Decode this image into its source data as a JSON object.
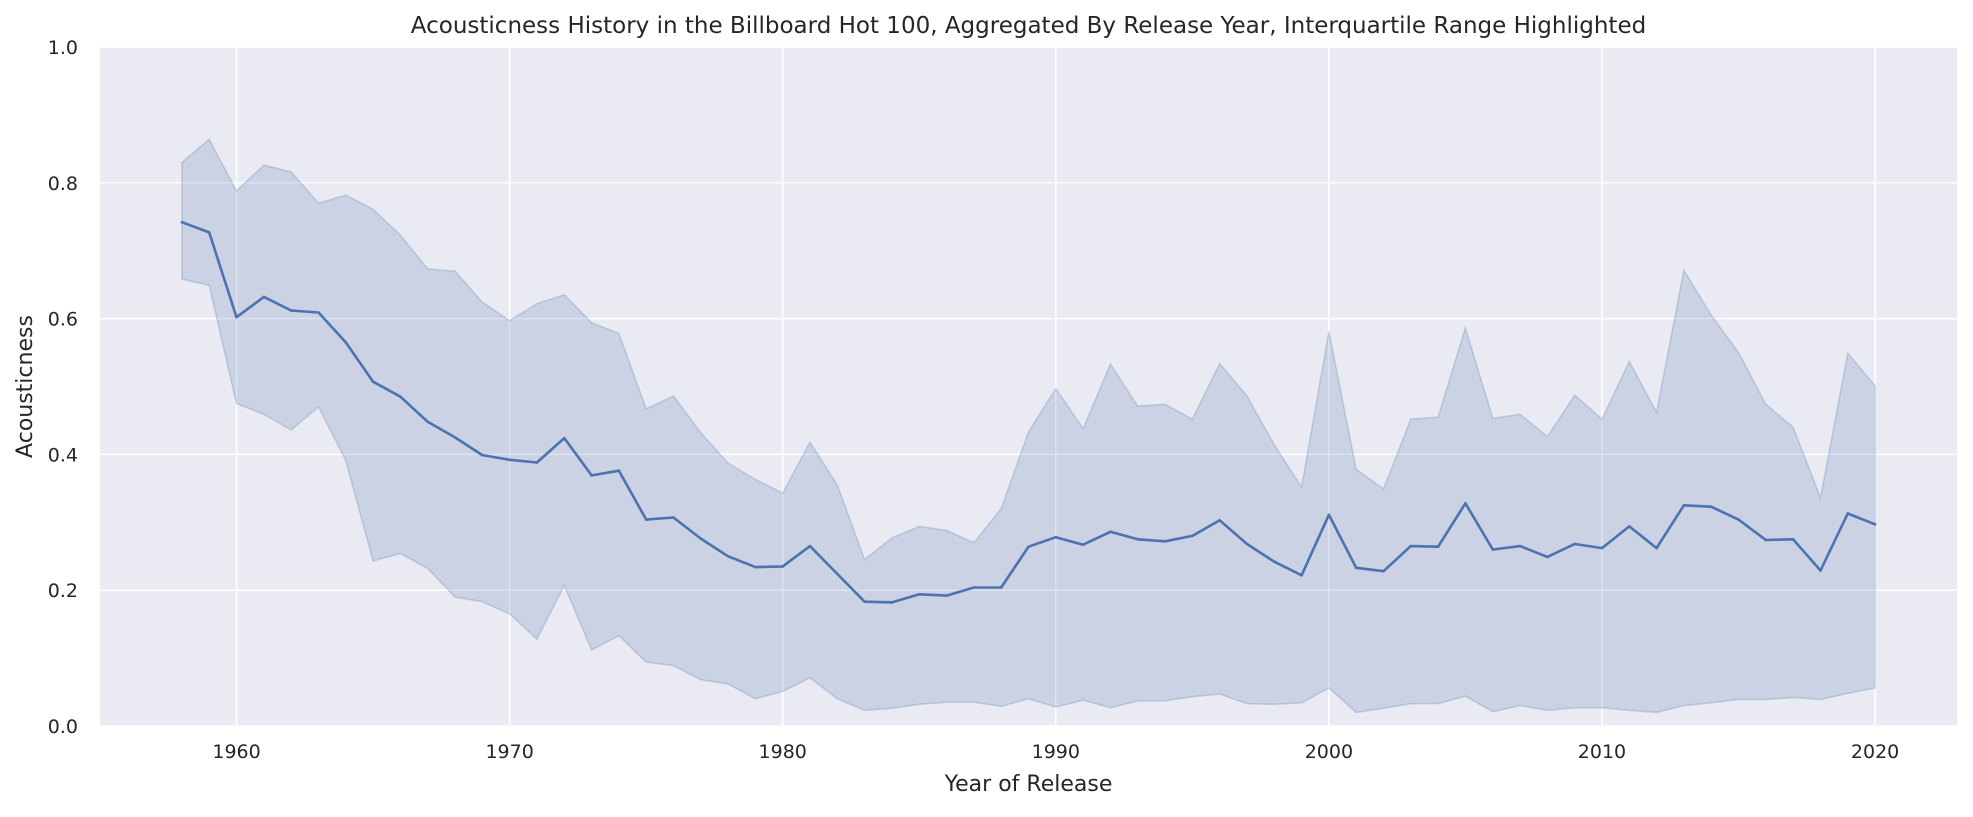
{
  "chart_data": {
    "type": "line",
    "title": "Acousticness History in the Billboard Hot 100, Aggregated By Release Year, Interquartile Range Highlighted",
    "xlabel": "Year of Release",
    "ylabel": "Acousticness",
    "xlim": [
      1955,
      2023
    ],
    "ylim": [
      0.0,
      1.0
    ],
    "xticks": [
      1960,
      1970,
      1980,
      1990,
      2000,
      2010,
      2020
    ],
    "xtick_labels": [
      "1960",
      "1970",
      "1980",
      "1990",
      "2000",
      "2010",
      "2020"
    ],
    "yticks": [
      0.0,
      0.2,
      0.4,
      0.6,
      0.8,
      1.0
    ],
    "ytick_labels": [
      "0.0",
      "0.2",
      "0.4",
      "0.6",
      "0.8",
      "1.0"
    ],
    "grid": true,
    "colors": {
      "background": "#eaeaf2",
      "grid": "#ffffff",
      "line": "#4c72b0",
      "band": "#4c72b0"
    },
    "x": [
      1958,
      1959,
      1960,
      1961,
      1962,
      1963,
      1964,
      1965,
      1966,
      1967,
      1968,
      1969,
      1970,
      1971,
      1972,
      1973,
      1974,
      1975,
      1976,
      1977,
      1978,
      1979,
      1980,
      1981,
      1982,
      1983,
      1984,
      1985,
      1986,
      1987,
      1988,
      1989,
      1990,
      1991,
      1992,
      1993,
      1994,
      1995,
      1996,
      1997,
      1998,
      1999,
      2000,
      2001,
      2002,
      2003,
      2004,
      2005,
      2006,
      2007,
      2008,
      2009,
      2010,
      2011,
      2012,
      2013,
      2014,
      2015,
      2016,
      2017,
      2018,
      2019,
      2020
    ],
    "series": [
      {
        "values": [
          0.742,
          0.727,
          0.602,
          0.632,
          0.612,
          0.609,
          0.565,
          0.507,
          0.485,
          0.448,
          0.425,
          0.399,
          0.392,
          0.388,
          0.424,
          0.369,
          0.376,
          0.304,
          0.307,
          0.276,
          0.25,
          0.234,
          0.235,
          0.265,
          0.224,
          0.183,
          0.182,
          0.194,
          0.192,
          0.204,
          0.204,
          0.264,
          0.278,
          0.267,
          0.286,
          0.275,
          0.272,
          0.28,
          0.303,
          0.268,
          0.242,
          0.222,
          0.311,
          0.233,
          0.228,
          0.265,
          0.264,
          0.328,
          0.26,
          0.265,
          0.249,
          0.268,
          0.262,
          0.294,
          0.262,
          0.325,
          0.323,
          0.304,
          0.274,
          0.275,
          0.229,
          0.313,
          0.297
        ],
        "q1": [
          0.658,
          0.649,
          0.475,
          0.459,
          0.436,
          0.47,
          0.391,
          0.243,
          0.254,
          0.232,
          0.19,
          0.183,
          0.165,
          0.128,
          0.207,
          0.112,
          0.133,
          0.094,
          0.089,
          0.068,
          0.062,
          0.04,
          0.051,
          0.071,
          0.04,
          0.023,
          0.026,
          0.032,
          0.035,
          0.035,
          0.029,
          0.04,
          0.028,
          0.038,
          0.027,
          0.037,
          0.037,
          0.043,
          0.047,
          0.033,
          0.032,
          0.034,
          0.056,
          0.02,
          0.026,
          0.033,
          0.033,
          0.044,
          0.021,
          0.03,
          0.023,
          0.027,
          0.027,
          0.023,
          0.02,
          0.03,
          0.034,
          0.039,
          0.039,
          0.042,
          0.039,
          0.048,
          0.056
        ],
        "q3": [
          0.83,
          0.864,
          0.788,
          0.826,
          0.816,
          0.77,
          0.782,
          0.761,
          0.723,
          0.673,
          0.67,
          0.624,
          0.597,
          0.622,
          0.635,
          0.594,
          0.578,
          0.467,
          0.486,
          0.432,
          0.387,
          0.363,
          0.343,
          0.418,
          0.355,
          0.245,
          0.277,
          0.294,
          0.288,
          0.27,
          0.32,
          0.433,
          0.497,
          0.438,
          0.533,
          0.471,
          0.474,
          0.452,
          0.534,
          0.486,
          0.414,
          0.352,
          0.581,
          0.378,
          0.349,
          0.452,
          0.455,
          0.586,
          0.453,
          0.459,
          0.426,
          0.487,
          0.452,
          0.537,
          0.462,
          0.671,
          0.605,
          0.55,
          0.474,
          0.44,
          0.336,
          0.549,
          0.501
        ]
      }
    ]
  }
}
